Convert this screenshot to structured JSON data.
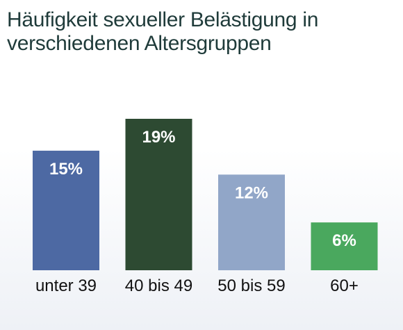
{
  "chart_data": {
    "type": "bar",
    "title": "Häufigkeit sexueller Belästigung in verschiedenen Altersgruppen",
    "xlabel": "",
    "ylabel": "",
    "categories": [
      "unter 39",
      "40 bis 49",
      "50 bis 59",
      "60+"
    ],
    "values": [
      15,
      19,
      12,
      6
    ],
    "value_labels": [
      "15%",
      "19%",
      "12%",
      "6%"
    ],
    "colors": [
      "#4d69a3",
      "#2d4a32",
      "#91a6c8",
      "#4aa85e"
    ],
    "ylim": [
      0,
      19
    ],
    "grid": false,
    "legend": "none"
  }
}
